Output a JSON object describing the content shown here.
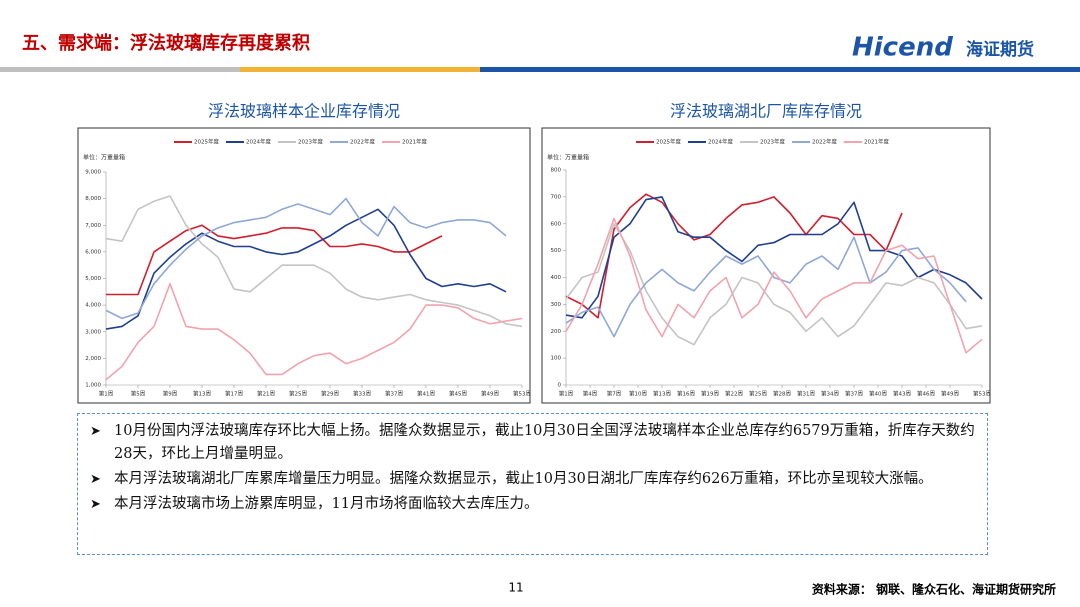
{
  "header": {
    "title": "五、需求端：浮法玻璃库存再度累积",
    "logo": "Hicend",
    "logo_sub": "海证期货"
  },
  "chart_data": [
    {
      "type": "line",
      "title": "浮法玻璃样本企业库存情况",
      "unit": "单位：万重量箱",
      "x": [
        1,
        3,
        5,
        7,
        9,
        11,
        13,
        15,
        17,
        19,
        21,
        23,
        25,
        27,
        29,
        31,
        33,
        35,
        37,
        39,
        41,
        43,
        45,
        47,
        49,
        51,
        53
      ],
      "xlim": [
        1,
        53
      ],
      "xticks": [
        {
          "value": 1,
          "label": "第1周"
        },
        {
          "value": 5,
          "label": "第5周"
        },
        {
          "value": 9,
          "label": "第9周"
        },
        {
          "value": 13,
          "label": "第13周"
        },
        {
          "value": 17,
          "label": "第17周"
        },
        {
          "value": 21,
          "label": "第21周"
        },
        {
          "value": 25,
          "label": "第25周"
        },
        {
          "value": 29,
          "label": "第29周"
        },
        {
          "value": 33,
          "label": "第33周"
        },
        {
          "value": 37,
          "label": "第37周"
        },
        {
          "value": 41,
          "label": "第41周"
        },
        {
          "value": 45,
          "label": "第45周"
        },
        {
          "value": 49,
          "label": "第49周"
        },
        {
          "value": 53,
          "label": "第53周"
        }
      ],
      "ylim": [
        1000,
        9000
      ],
      "yticks": [
        {
          "value": 1000,
          "label": "1,000"
        },
        {
          "value": 2000,
          "label": "2,000"
        },
        {
          "value": 3000,
          "label": "3,000"
        },
        {
          "value": 4000,
          "label": "4,000"
        },
        {
          "value": 5000,
          "label": "5,000"
        },
        {
          "value": 6000,
          "label": "6,000"
        },
        {
          "value": 7000,
          "label": "7,000"
        },
        {
          "value": 8000,
          "label": "8,000"
        },
        {
          "value": 9000,
          "label": "9,000"
        }
      ],
      "series": [
        {
          "name": "2025年度",
          "color": "#d0202e",
          "values": [
            4400,
            4400,
            4400,
            6000,
            6400,
            6800,
            7000,
            6600,
            6500,
            6600,
            6700,
            6900,
            6900,
            6800,
            6200,
            6200,
            6300,
            6200,
            6000,
            6000,
            6300,
            6600,
            null,
            null,
            null,
            null,
            null
          ]
        },
        {
          "name": "2024年度",
          "color": "#1f3f8f",
          "values": [
            3100,
            3200,
            3600,
            5200,
            5800,
            6300,
            6700,
            6400,
            6200,
            6200,
            6000,
            5900,
            6000,
            6300,
            6600,
            7000,
            7300,
            7600,
            7000,
            5900,
            5000,
            4700,
            4800,
            4700,
            4800,
            4500,
            null
          ]
        },
        {
          "name": "2023年度",
          "color": "#c4c4c4",
          "values": [
            6500,
            6400,
            7600,
            7900,
            8100,
            7000,
            6300,
            5800,
            4600,
            4500,
            5000,
            5500,
            5500,
            5500,
            5200,
            4600,
            4300,
            4200,
            4300,
            4400,
            4200,
            4100,
            4000,
            3800,
            3600,
            3300,
            3200
          ]
        },
        {
          "name": "2022年度",
          "color": "#8fa8d6",
          "values": [
            3800,
            3500,
            3700,
            4800,
            5500,
            6100,
            6600,
            6900,
            7100,
            7200,
            7300,
            7600,
            7800,
            7600,
            7400,
            8000,
            7100,
            6600,
            7700,
            7100,
            6900,
            7100,
            7200,
            7200,
            7100,
            6600,
            null
          ]
        },
        {
          "name": "2021年度",
          "color": "#f2a3ad",
          "values": [
            1200,
            1700,
            2600,
            3200,
            4800,
            3200,
            3100,
            3100,
            2700,
            2200,
            1400,
            1400,
            1800,
            2100,
            2200,
            1800,
            2000,
            2300,
            2600,
            3100,
            4000,
            4000,
            3900,
            3500,
            3300,
            3400,
            3500
          ]
        }
      ]
    },
    {
      "type": "line",
      "title": "浮法玻璃湖北厂库库存情况",
      "unit": "单位：万重量箱",
      "x": [
        1,
        3,
        5,
        7,
        9,
        11,
        13,
        15,
        17,
        19,
        21,
        23,
        25,
        27,
        29,
        31,
        33,
        35,
        37,
        39,
        41,
        43,
        45,
        47,
        49,
        51,
        53
      ],
      "xlim": [
        1,
        53
      ],
      "xticks": [
        {
          "value": 1,
          "label": "第1周"
        },
        {
          "value": 4,
          "label": "第4周"
        },
        {
          "value": 7,
          "label": "第7周"
        },
        {
          "value": 10,
          "label": "第10周"
        },
        {
          "value": 13,
          "label": "第13周"
        },
        {
          "value": 16,
          "label": "第16周"
        },
        {
          "value": 19,
          "label": "第19周"
        },
        {
          "value": 22,
          "label": "第22周"
        },
        {
          "value": 25,
          "label": "第25周"
        },
        {
          "value": 28,
          "label": "第28周"
        },
        {
          "value": 31,
          "label": "第31周"
        },
        {
          "value": 34,
          "label": "第34周"
        },
        {
          "value": 37,
          "label": "第37周"
        },
        {
          "value": 40,
          "label": "第40周"
        },
        {
          "value": 43,
          "label": "第43周"
        },
        {
          "value": 46,
          "label": "第46周"
        },
        {
          "value": 49,
          "label": "第49周"
        },
        {
          "value": 53,
          "label": "第53周"
        }
      ],
      "ylim": [
        0,
        800
      ],
      "yticks": [
        0,
        100,
        200,
        300,
        400,
        500,
        600,
        700,
        800
      ],
      "series": [
        {
          "name": "2025年度",
          "color": "#d0202e",
          "values": [
            330,
            300,
            250,
            580,
            660,
            710,
            680,
            600,
            540,
            560,
            620,
            670,
            680,
            700,
            640,
            560,
            630,
            620,
            560,
            560,
            500,
            640,
            null,
            null,
            null,
            null,
            null
          ]
        },
        {
          "name": "2024年度",
          "color": "#1f3f8f",
          "values": [
            260,
            250,
            330,
            550,
            600,
            690,
            700,
            570,
            550,
            550,
            500,
            460,
            520,
            530,
            560,
            560,
            560,
            600,
            680,
            500,
            500,
            480,
            400,
            430,
            410,
            380,
            320
          ]
        },
        {
          "name": "2023年度",
          "color": "#c4c4c4",
          "values": [
            320,
            400,
            420,
            600,
            500,
            350,
            250,
            180,
            150,
            250,
            300,
            400,
            380,
            300,
            270,
            200,
            250,
            180,
            220,
            300,
            380,
            370,
            400,
            380,
            300,
            210,
            220
          ]
        },
        {
          "name": "2022年度",
          "color": "#8fa8d6",
          "values": [
            230,
            270,
            290,
            180,
            300,
            380,
            430,
            380,
            350,
            420,
            480,
            450,
            480,
            400,
            380,
            450,
            480,
            430,
            550,
            380,
            420,
            500,
            510,
            430,
            380,
            310,
            null
          ]
        },
        {
          "name": "2021年度",
          "color": "#f2a3ad",
          "values": [
            200,
            300,
            450,
            620,
            480,
            280,
            180,
            300,
            250,
            350,
            400,
            250,
            300,
            420,
            350,
            250,
            320,
            350,
            380,
            380,
            500,
            520,
            470,
            480,
            300,
            120,
            170
          ]
        }
      ]
    }
  ],
  "bullets": [
    "10月份国内浮法玻璃库存环比大幅上扬。据隆众数据显示，截止10月30日全国浮法玻璃样本企业总库存约6579万重箱，折库存天数约28天，环比上月增量明显。",
    "本月浮法玻璃湖北厂库累库增量压力明显。据隆众数据显示，截止10月30日湖北厂库库存约626万重箱，环比亦呈现较大涨幅。",
    "本月浮法玻璃市场上游累库明显，11月市场将面临较大去库压力。"
  ],
  "footer": {
    "page": "11",
    "source": "资料来源：  钢联、隆众石化、海证期货研究所"
  }
}
